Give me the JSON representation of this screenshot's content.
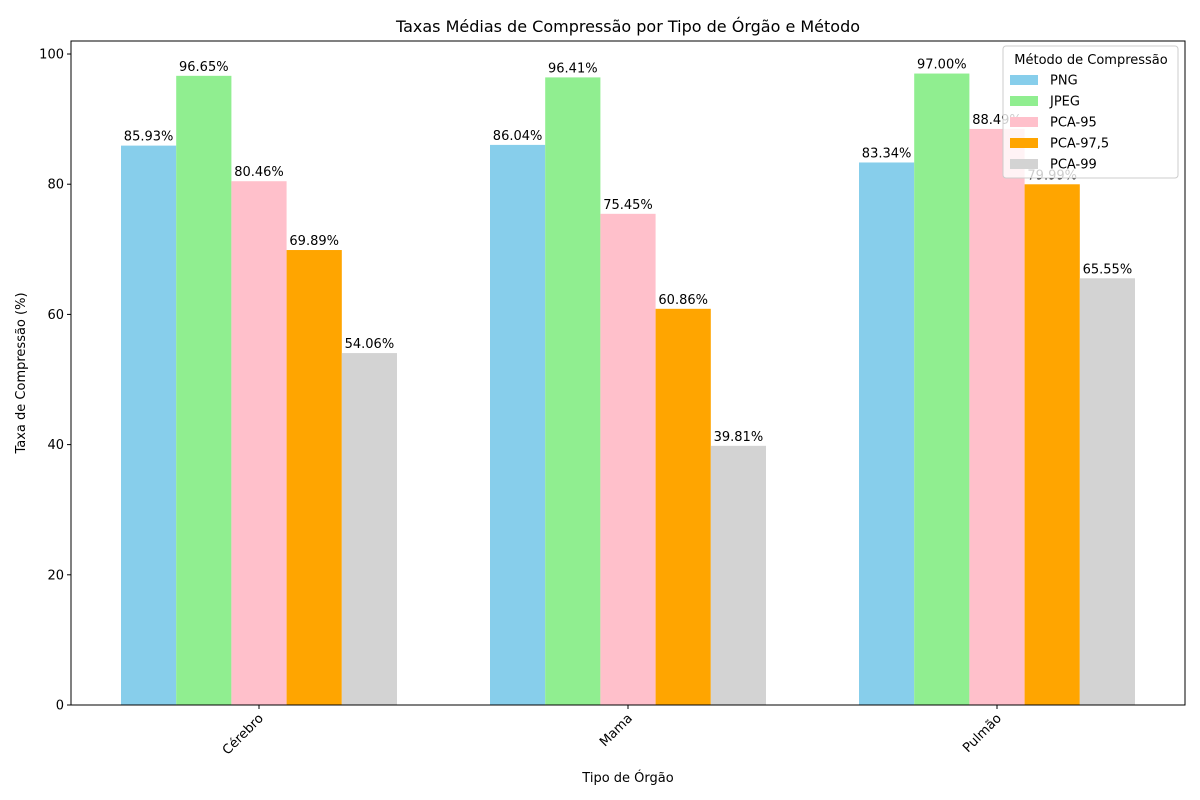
{
  "chart_data": {
    "type": "bar",
    "title": "Taxas Médias de Compressão por Tipo de Órgão e Método",
    "xlabel": "Tipo de Órgão",
    "ylabel": "Taxa de Compressão (%)",
    "categories": [
      "Cérebro",
      "Mama",
      "Pulmão"
    ],
    "ylim": [
      0,
      102
    ],
    "yticks": [
      0,
      20,
      40,
      60,
      80,
      100
    ],
    "value_suffix": "%",
    "legend_title": "Método de Compressão",
    "legend_position": "top-right",
    "grid": false,
    "series": [
      {
        "name": "PNG",
        "color": "#87CEEB",
        "values": [
          85.93,
          86.04,
          83.34
        ],
        "labels": [
          "85.93%",
          "86.04%",
          "83.34%"
        ]
      },
      {
        "name": "JPEG",
        "color": "#90EE90",
        "values": [
          96.65,
          96.41,
          97.0
        ],
        "labels": [
          "96.65%",
          "96.41%",
          "97.00%"
        ]
      },
      {
        "name": "PCA-95",
        "color": "#FFC0CB",
        "values": [
          80.46,
          75.45,
          88.49
        ],
        "labels": [
          "80.46%",
          "75.45%",
          "88.49%"
        ]
      },
      {
        "name": "PCA-97,5",
        "color": "#FFA500",
        "values": [
          69.89,
          60.86,
          79.99
        ],
        "labels": [
          "69.89%",
          "60.86%",
          "79.99%"
        ]
      },
      {
        "name": "PCA-99",
        "color": "#D3D3D3",
        "values": [
          54.06,
          39.81,
          65.55
        ],
        "labels": [
          "54.06%",
          "39.81%",
          "65.55%"
        ]
      }
    ]
  }
}
